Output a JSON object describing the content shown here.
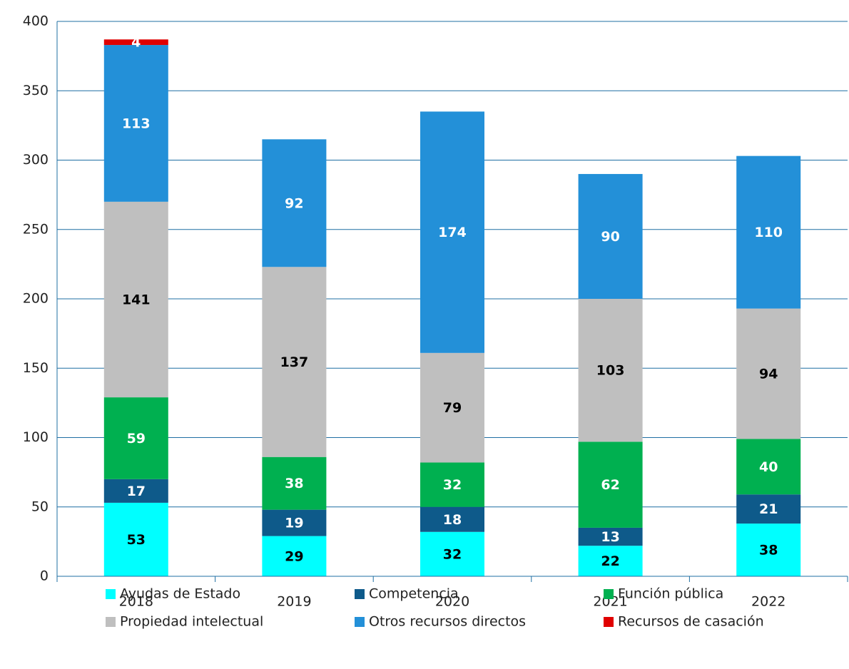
{
  "chart_data": {
    "type": "stacked_bar",
    "categories": [
      "2018",
      "2019",
      "2020",
      "2021",
      "2022"
    ],
    "series": [
      {
        "name": "Ayudas de Estado",
        "color": "#00ffff",
        "label_color": "#000000",
        "values": [
          53,
          29,
          32,
          22,
          38
        ]
      },
      {
        "name": "Competencia",
        "color": "#0e5a8a",
        "label_color": "#ffffff",
        "values": [
          17,
          19,
          18,
          13,
          21
        ]
      },
      {
        "name": "Función pública",
        "color": "#00b050",
        "label_color": "#ffffff",
        "values": [
          59,
          38,
          32,
          62,
          40
        ]
      },
      {
        "name": "Propiedad intelectual",
        "color": "#bfbfbf",
        "label_color": "#000000",
        "values": [
          141,
          137,
          79,
          103,
          94
        ]
      },
      {
        "name": "Otros recursos directos",
        "color": "#2390d8",
        "label_color": "#ffffff",
        "values": [
          113,
          92,
          174,
          90,
          110
        ]
      },
      {
        "name": "Recursos de casación",
        "color": "#e00000",
        "label_color": "#ffffff",
        "values": [
          4,
          null,
          null,
          null,
          null
        ]
      }
    ],
    "ylim": [
      0,
      400
    ],
    "yticks": [
      0,
      50,
      100,
      150,
      200,
      250,
      300,
      350,
      400
    ],
    "grid": true
  }
}
